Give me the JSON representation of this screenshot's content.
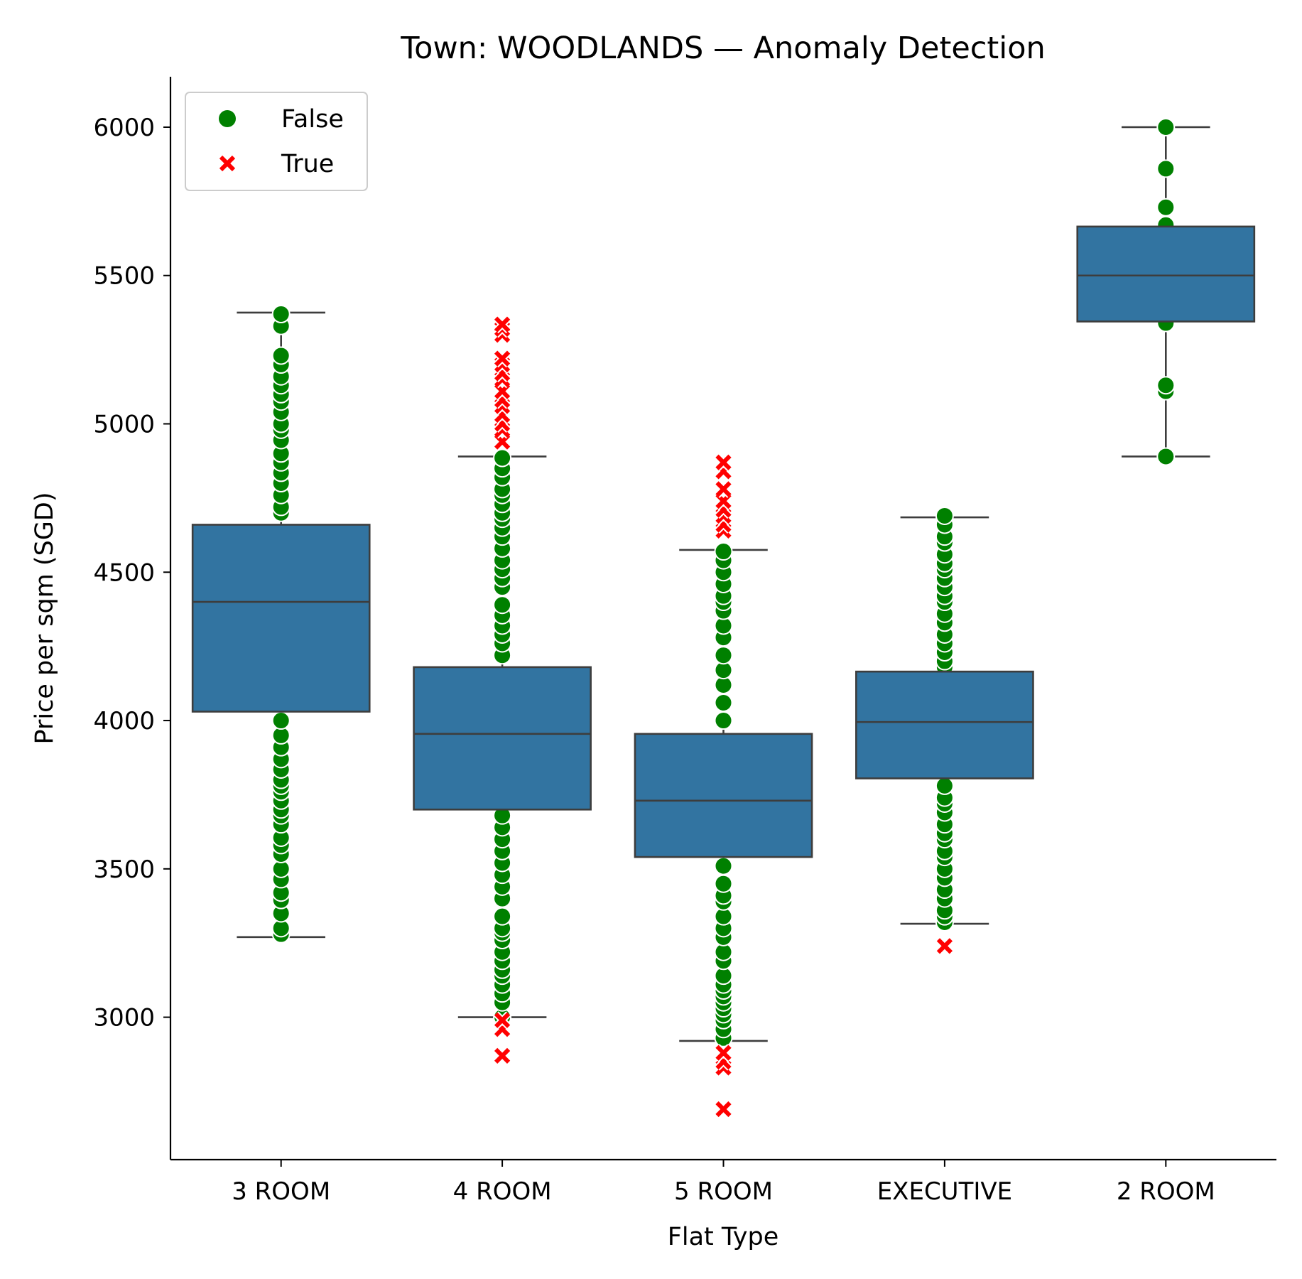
{
  "chart_data": {
    "type": "box",
    "title": "Town: WOODLANDS — Anomaly Detection",
    "xlabel": "Flat Type",
    "ylabel": "Price per sqm (SGD)",
    "ylim": [
      2520,
      6170
    ],
    "yticks": [
      3000,
      3500,
      4000,
      4500,
      5000,
      5500,
      6000
    ],
    "categories": [
      "3 ROOM",
      "4 ROOM",
      "5 ROOM",
      "EXECUTIVE",
      "2 ROOM"
    ],
    "box_color": "#3274a1",
    "line_color": "#3d3d3d",
    "boxes": [
      {
        "category": "3 ROOM",
        "whisker_low": 3270,
        "q1": 4030,
        "median": 4400,
        "q3": 4660,
        "whisker_high": 5375
      },
      {
        "category": "4 ROOM",
        "whisker_low": 3000,
        "q1": 3700,
        "median": 3955,
        "q3": 4180,
        "whisker_high": 4890
      },
      {
        "category": "5 ROOM",
        "whisker_low": 2920,
        "q1": 3540,
        "median": 3730,
        "q3": 3955,
        "whisker_high": 4575
      },
      {
        "category": "EXECUTIVE",
        "whisker_low": 3315,
        "q1": 3805,
        "median": 3995,
        "q3": 4165,
        "whisker_high": 4685
      },
      {
        "category": "2 ROOM",
        "whisker_low": 4890,
        "q1": 5345,
        "median": 5500,
        "q3": 5665,
        "whisker_high": 6000
      }
    ],
    "legend": {
      "placement": "top-left",
      "entries": [
        {
          "label": "False",
          "marker": "circle",
          "color": "#008000"
        },
        {
          "label": "True",
          "marker": "x",
          "color": "#ff0000"
        }
      ]
    },
    "points": {
      "3 ROOM": {
        "False": [
          3280,
          3300,
          3350,
          3395,
          3420,
          3465,
          3500,
          3550,
          3580,
          3605,
          3650,
          3680,
          3700,
          3730,
          3760,
          3780,
          3800,
          3835,
          3870,
          3910,
          3950,
          4000,
          4700,
          4720,
          4760,
          4800,
          4835,
          4870,
          4900,
          4945,
          4980,
          5000,
          5040,
          5075,
          5100,
          5130,
          5160,
          5200,
          5230,
          5330,
          5370
        ],
        "True": []
      },
      "4 ROOM": {
        "False": [
          3000,
          3050,
          3080,
          3110,
          3140,
          3160,
          3190,
          3220,
          3260,
          3285,
          3300,
          3340,
          3400,
          3440,
          3480,
          3520,
          3560,
          3600,
          3640,
          3680,
          4220,
          4260,
          4290,
          4320,
          4355,
          4390,
          4450,
          4480,
          4510,
          4540,
          4580,
          4620,
          4650,
          4680,
          4700,
          4730,
          4760,
          4780,
          4820,
          4850,
          4885
        ],
        "True": [
          2870,
          2960,
          2990,
          4940,
          4980,
          5000,
          5030,
          5060,
          5080,
          5110,
          5150,
          5170,
          5200,
          5220,
          5300,
          5320,
          5335
        ]
      },
      "5 ROOM": {
        "False": [
          2930,
          2960,
          2990,
          3010,
          3030,
          3050,
          3070,
          3090,
          3110,
          3140,
          3190,
          3220,
          3270,
          3300,
          3340,
          3390,
          3410,
          3450,
          3510,
          4000,
          4060,
          4120,
          4170,
          4220,
          4280,
          4320,
          4370,
          4400,
          4420,
          4460,
          4500,
          4540,
          4570
        ],
        "True": [
          2690,
          2830,
          2850,
          2880,
          4640,
          4660,
          4690,
          4710,
          4740,
          4780,
          4840,
          4870
        ]
      },
      "EXECUTIVE": {
        "False": [
          3320,
          3340,
          3360,
          3400,
          3430,
          3470,
          3500,
          3540,
          3560,
          3600,
          3620,
          3650,
          3690,
          3720,
          3740,
          3780,
          4180,
          4200,
          4230,
          4260,
          4290,
          4330,
          4360,
          4400,
          4420,
          4450,
          4480,
          4510,
          4530,
          4560,
          4600,
          4620,
          4660,
          4690
        ],
        "True": [
          3240
        ]
      },
      "2 ROOM": {
        "False": [
          4890,
          5110,
          5130,
          5340,
          5670,
          5730,
          5860,
          6000
        ],
        "True": []
      }
    }
  }
}
